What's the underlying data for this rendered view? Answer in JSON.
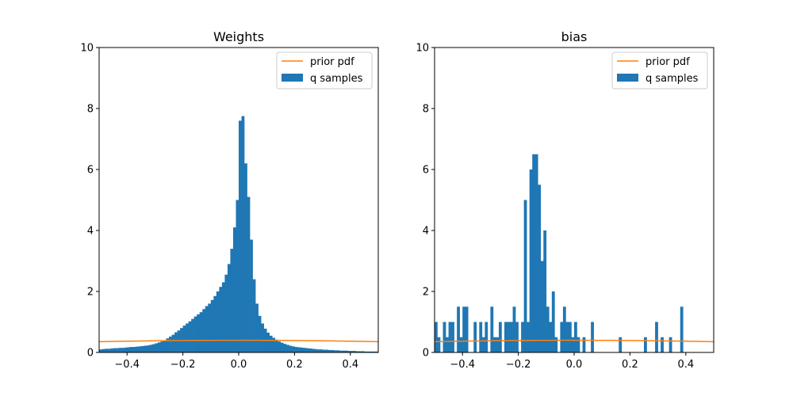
{
  "colors": {
    "hist": "#1f77b4",
    "prior": "#ff7f0e",
    "axes": "#000000",
    "legend_border": "#cccccc"
  },
  "chart_data": [
    {
      "type": "bar",
      "title": "Weights",
      "xlabel": "",
      "ylabel": "",
      "xlim": [
        -0.5,
        0.5
      ],
      "ylim": [
        0,
        10
      ],
      "x_ticks": [
        -0.4,
        -0.2,
        0.0,
        0.2,
        0.4
      ],
      "x_tick_labels": [
        "−0.4",
        "−0.2",
        "0.0",
        "0.2",
        "0.4"
      ],
      "y_ticks": [
        0,
        2,
        4,
        6,
        8,
        10
      ],
      "y_tick_labels": [
        "0",
        "2",
        "4",
        "6",
        "8",
        "10"
      ],
      "grid": false,
      "legend_position": "top-right",
      "legend": [
        "prior pdf",
        "q samples"
      ],
      "histogram": {
        "name": "q samples",
        "bin_start": -0.5,
        "bin_width": 0.01,
        "values": [
          0.1,
          0.11,
          0.12,
          0.12,
          0.13,
          0.14,
          0.14,
          0.15,
          0.15,
          0.16,
          0.17,
          0.18,
          0.18,
          0.19,
          0.2,
          0.21,
          0.22,
          0.23,
          0.25,
          0.27,
          0.3,
          0.33,
          0.36,
          0.4,
          0.46,
          0.52,
          0.58,
          0.66,
          0.72,
          0.8,
          0.88,
          0.95,
          1.02,
          1.1,
          1.18,
          1.25,
          1.32,
          1.42,
          1.52,
          1.6,
          1.72,
          1.85,
          2.0,
          2.15,
          2.3,
          2.55,
          2.9,
          3.4,
          4.1,
          5.0,
          7.6,
          7.75,
          6.2,
          5.1,
          3.7,
          2.4,
          1.6,
          1.2,
          0.95,
          0.78,
          0.65,
          0.55,
          0.48,
          0.42,
          0.36,
          0.32,
          0.28,
          0.25,
          0.22,
          0.2,
          0.18,
          0.17,
          0.16,
          0.15,
          0.14,
          0.13,
          0.12,
          0.11,
          0.1,
          0.1,
          0.09,
          0.09,
          0.08,
          0.08,
          0.07,
          0.07,
          0.06,
          0.06,
          0.06,
          0.05,
          0.05,
          0.05,
          0.04,
          0.04,
          0.04,
          0.03,
          0.03,
          0.03,
          0.03,
          0.03
        ]
      },
      "prior_pdf": {
        "name": "prior pdf",
        "mean": 0,
        "std": 1
      }
    },
    {
      "type": "bar",
      "title": "bias",
      "xlabel": "",
      "ylabel": "",
      "xlim": [
        -0.5,
        0.5
      ],
      "ylim": [
        0,
        10
      ],
      "x_ticks": [
        -0.4,
        -0.2,
        0.0,
        0.2,
        0.4
      ],
      "x_tick_labels": [
        "−0.4",
        "−0.2",
        "0.0",
        "0.2",
        "0.4"
      ],
      "y_ticks": [
        0,
        2,
        4,
        6,
        8,
        10
      ],
      "y_tick_labels": [
        "0",
        "2",
        "4",
        "6",
        "8",
        "10"
      ],
      "grid": false,
      "legend_position": "top-right",
      "legend": [
        "prior pdf",
        "q samples"
      ],
      "histogram": {
        "name": "q samples",
        "bin_start": -0.5,
        "bin_width": 0.01,
        "values": [
          1.0,
          0.5,
          0.0,
          1.0,
          0.5,
          1.0,
          1.0,
          0.0,
          1.5,
          0.5,
          1.5,
          1.5,
          0.0,
          0.0,
          1.0,
          0.0,
          1.0,
          0.5,
          1.0,
          0.0,
          1.5,
          0.5,
          0.5,
          1.0,
          0.0,
          1.0,
          1.0,
          1.0,
          1.5,
          1.0,
          0.0,
          1.0,
          5.0,
          1.0,
          6.0,
          6.5,
          6.5,
          5.5,
          3.0,
          4.0,
          1.5,
          1.0,
          2.0,
          0.5,
          0.0,
          1.0,
          1.5,
          1.0,
          1.0,
          0.5,
          1.0,
          0.5,
          0.0,
          0.5,
          0.0,
          0.0,
          1.0,
          0.0,
          0.0,
          0.0,
          0.0,
          0.0,
          0.0,
          0.0,
          0.0,
          0.0,
          0.0,
          0.0,
          0.0,
          0.0,
          0.0,
          0.0,
          0.0,
          0.0,
          0.0,
          0.0,
          0.0,
          0.0,
          0.0,
          0.0,
          0.0,
          0.0,
          0.0,
          0.0,
          0.0,
          0.0,
          0.0,
          0.0,
          0.0,
          0.0,
          0.0,
          0.0,
          0.0,
          0.0,
          0.0,
          0.0,
          0.0,
          0.0,
          0.0,
          0.0
        ],
        "extra_bars": [
          {
            "x": 0.16,
            "value": 0.5
          },
          {
            "x": 0.25,
            "value": 0.5
          },
          {
            "x": 0.29,
            "value": 1.0
          },
          {
            "x": 0.31,
            "value": 0.5
          },
          {
            "x": 0.34,
            "value": 0.5
          },
          {
            "x": 0.38,
            "value": 1.5
          }
        ]
      },
      "prior_pdf": {
        "name": "prior pdf",
        "mean": 0,
        "std": 1
      }
    }
  ]
}
